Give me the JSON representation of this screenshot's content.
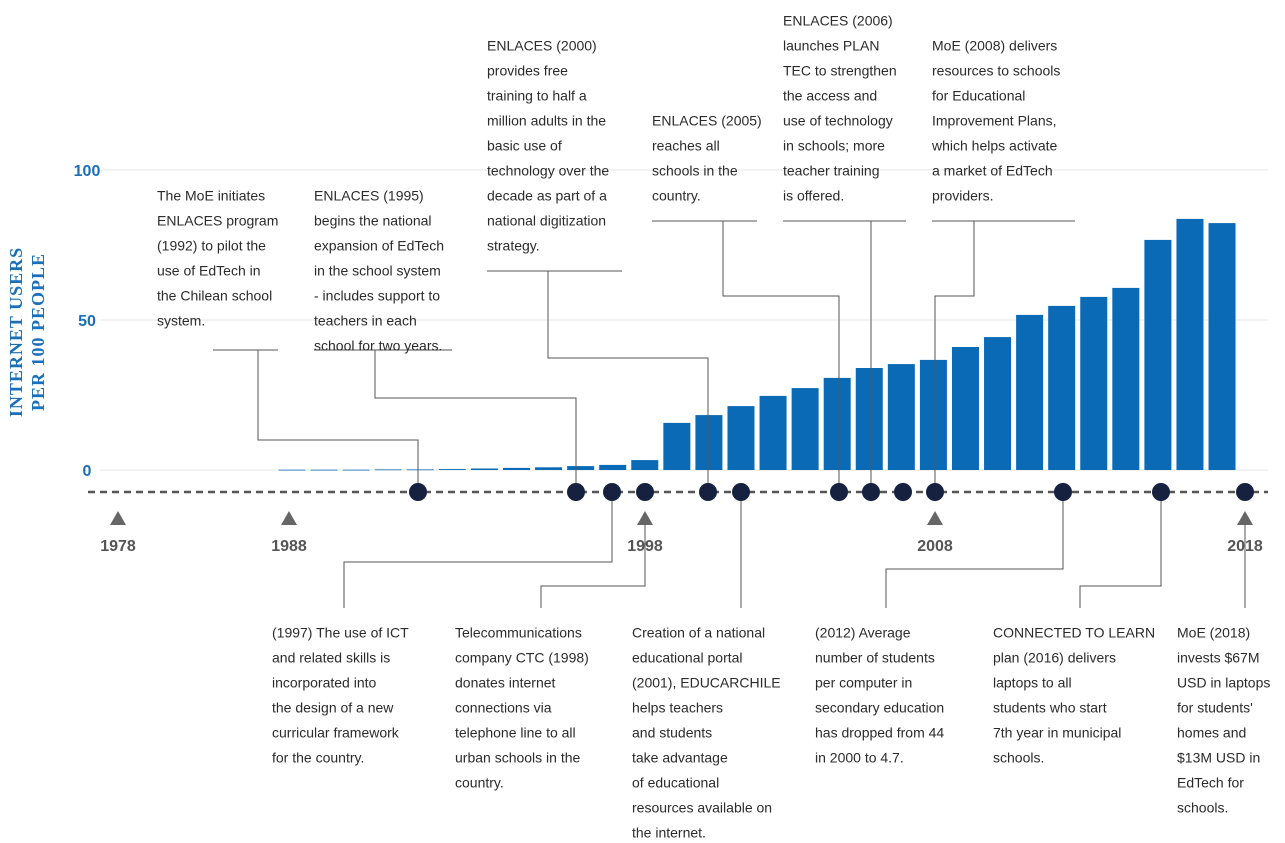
{
  "chart_data": {
    "type": "bar",
    "y_label": [
      "INTERNET USERS",
      "PER 100 PEOPLE"
    ],
    "values": [
      0.1,
      0.1,
      0.1,
      0.2,
      0.2,
      0.3,
      0.5,
      0.7,
      0.9,
      1.3,
      1.7,
      3.3,
      15.7,
      18.3,
      21.3,
      24.7,
      27.3,
      30.7,
      34,
      35.3,
      36.7,
      41,
      44.3,
      51.7,
      54.7,
      57.7,
      60.7,
      76.7,
      83.7,
      82.3
    ],
    "color": "#0a6ab6",
    "ylim": [
      0,
      100
    ],
    "yticks": [
      0,
      50,
      100
    ],
    "grid": true,
    "timeline_labels": [
      "1978",
      "1988",
      "1998",
      "2008",
      "2018"
    ]
  },
  "annotations": [
    {
      "lines": [
        "The MoE initiates",
        "ENLACES program",
        "(1992) to pilot the",
        "use of EdTech in",
        "the Chilean school",
        "system."
      ]
    },
    {
      "lines": [
        "ENLACES (1995)",
        "begins the national",
        "expansion of EdTech",
        "in the school system",
        "- includes support to",
        "teachers in each",
        "school for two years."
      ]
    },
    {
      "lines": [
        "ENLACES (2000)",
        "provides free",
        "training to half a",
        "million adults in the",
        "basic use of",
        "technology over the",
        "decade as part of a",
        "national digitization",
        "strategy."
      ]
    },
    {
      "lines": [
        "ENLACES (2005)",
        "reaches all",
        "schools in the",
        "country."
      ]
    },
    {
      "lines": [
        "ENLACES (2006)",
        "launches PLAN",
        "TEC to strengthen",
        "the access and",
        "use of technology",
        "in schools; more",
        "teacher training",
        "is offered."
      ]
    },
    {
      "lines": [
        "MoE (2008) delivers",
        "resources to schools",
        "for Educational",
        "Improvement Plans,",
        "which helps activate",
        "a market of EdTech",
        "providers."
      ]
    },
    {
      "lines": [
        "(1997) The use of ICT",
        "and related skills is",
        "incorporated into",
        "the design of a new",
        "curricular framework",
        "for the country."
      ]
    },
    {
      "lines": [
        "Telecommunications",
        "company CTC (1998)",
        "donates internet",
        "connections via",
        "telephone line to all",
        "urban schools in the",
        "country."
      ]
    },
    {
      "lines": [
        "Creation of a national",
        "educational portal",
        "(2001), EDUCARCHILE",
        "helps teachers",
        "and students",
        "take advantage",
        "of educational",
        "resources available on",
        "the internet."
      ]
    },
    {
      "lines": [
        "(2012) Average",
        "number of students",
        "per computer in",
        "secondary education",
        "has dropped from 44",
        "in 2000 to 4.7."
      ]
    },
    {
      "lines": [
        "CONNECTED TO LEARN",
        "plan (2016) delivers",
        "laptops to all",
        "students who start",
        "7th year in municipal",
        "schools."
      ]
    },
    {
      "lines": [
        "MoE (2018)",
        "invests $67M",
        "USD in laptops",
        "for students'",
        "homes and",
        "$13M USD in",
        "EdTech for",
        "schools."
      ]
    }
  ]
}
